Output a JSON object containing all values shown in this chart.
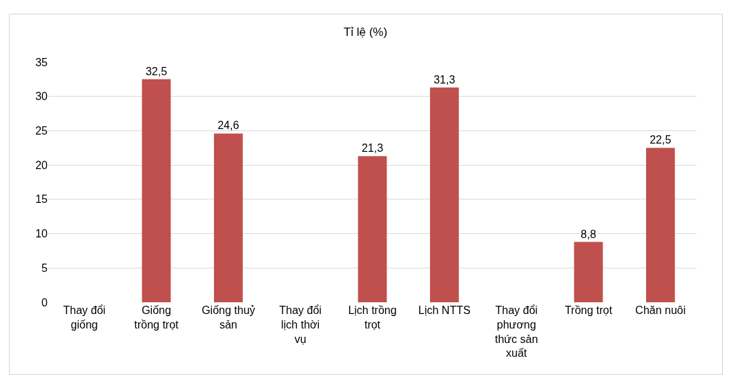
{
  "chart_data": {
    "type": "bar",
    "title": "Tỉ lệ (%)",
    "categories": [
      "Thay đổi giống",
      "Giống trồng trọt",
      "Giống thuỷ sản",
      "Thay đổi lịch thời vụ",
      "Lịch trồng trọt",
      "Lịch NTTS",
      "Thay đổi phương thức sản xuất",
      "Trồng trọt",
      "Chăn nuôi"
    ],
    "values": [
      null,
      32.5,
      24.6,
      null,
      21.3,
      31.3,
      null,
      8.8,
      22.5
    ],
    "value_labels": [
      null,
      "32,5",
      "24,6",
      null,
      "21,3",
      "31,3",
      null,
      "8,8",
      "22,5"
    ],
    "color": "#c0504d",
    "ylim": [
      0,
      35
    ],
    "yticks": [
      0,
      5,
      10,
      15,
      20,
      25,
      30,
      35
    ],
    "grid": "y",
    "legend": false
  }
}
